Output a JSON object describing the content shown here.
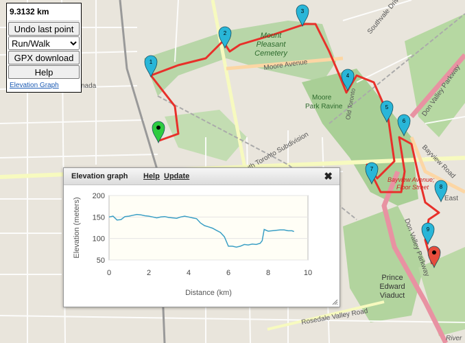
{
  "panel": {
    "distance": "9.3132 km",
    "undo_label": "Undo last point",
    "mode_value": "Run/Walk",
    "gpx_label": "GPX download",
    "help_label": "Help",
    "elevation_link": "Elevation Graph"
  },
  "map_labels": {
    "cemetery": [
      "Mount",
      "Pleasant",
      "Cemetery"
    ],
    "moore_avenue": "Moore Avenue",
    "moore_park": [
      "Moore",
      "Park Ravine"
    ],
    "south_toronto": "South Toronto Subdivision",
    "bayview_floor": [
      "Bayview Avenue;",
      "Floor Street"
    ],
    "don_valley_pkwy": "Don Valley Parkway",
    "don_valley_pkwy2": "Don Valley Parkway",
    "bayview_road": "Bayview Road",
    "prince_edward": [
      "Prince",
      "Edward",
      "Viaduct"
    ],
    "rosedale": "Rosedale Valley Road",
    "southvale": "Southvale Drive",
    "east": "East",
    "ada": "nada",
    "old_toronto": "Old Toronto",
    "river": "River"
  },
  "markers": [
    "1",
    "2",
    "3",
    "4",
    "5",
    "6",
    "7",
    "8",
    "9"
  ],
  "dialog": {
    "title": "Elevation graph",
    "help": "Help",
    "update": "Update",
    "close": "✖"
  },
  "colors": {
    "route": "#e8302a",
    "marker_cyan": "#29b6d8",
    "start": "#2ecc40",
    "end": "#e74c3c",
    "line": "#3a9fc5"
  },
  "chart_data": {
    "type": "line",
    "xlabel": "Distance (km)",
    "ylabel": "Elevation (meters)",
    "xlim": [
      0,
      10
    ],
    "ylim": [
      50,
      200
    ],
    "xticks": [
      "0",
      "2",
      "4",
      "6",
      "8",
      "10"
    ],
    "yticks": [
      "50",
      "100",
      "150",
      "200"
    ],
    "x": [
      0,
      0.2,
      0.4,
      0.6,
      0.8,
      1.0,
      1.2,
      1.4,
      1.6,
      1.8,
      2.0,
      2.2,
      2.4,
      2.6,
      2.8,
      3.0,
      3.2,
      3.4,
      3.6,
      3.8,
      4.0,
      4.2,
      4.4,
      4.6,
      4.8,
      5.0,
      5.2,
      5.4,
      5.6,
      5.8,
      6.0,
      6.2,
      6.4,
      6.6,
      6.8,
      7.0,
      7.2,
      7.4,
      7.6,
      7.7,
      7.8,
      8.0,
      8.2,
      8.4,
      8.6,
      8.8,
      9.0,
      9.2,
      9.3
    ],
    "y": [
      150,
      152,
      143,
      144,
      151,
      152,
      154,
      156,
      155,
      153,
      152,
      150,
      148,
      150,
      151,
      149,
      148,
      147,
      150,
      152,
      150,
      148,
      146,
      136,
      130,
      127,
      124,
      119,
      114,
      104,
      82,
      82,
      80,
      82,
      86,
      85,
      87,
      86,
      89,
      95,
      121,
      117,
      118,
      119,
      120,
      120,
      118,
      118,
      116
    ]
  }
}
